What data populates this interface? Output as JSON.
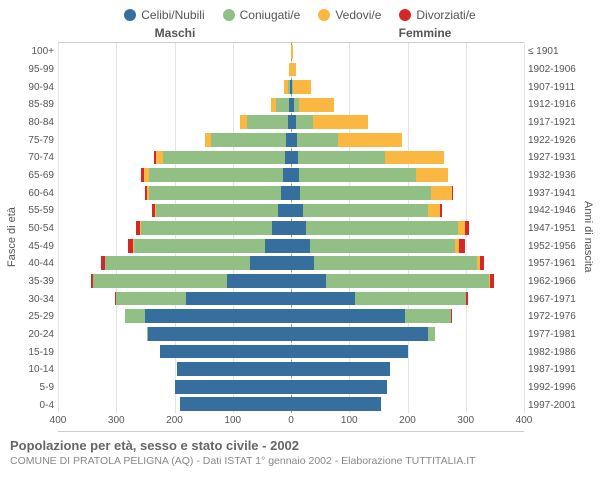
{
  "colors": {
    "celibi": "#366f9e",
    "coniugati": "#91bf84",
    "vedovi": "#fab742",
    "divorziati": "#d62728",
    "grid": "#e4e4e4",
    "center": "#999999",
    "text": "#555555",
    "bg": "#ffffff"
  },
  "legend": [
    {
      "key": "celibi",
      "label": "Celibi/Nubili"
    },
    {
      "key": "coniugati",
      "label": "Coniugati/e"
    },
    {
      "key": "vedovi",
      "label": "Vedovi/e"
    },
    {
      "key": "divorziati",
      "label": "Divorziati/e"
    }
  ],
  "gender_left": "Maschi",
  "gender_right": "Femmine",
  "ylabel_left": "Fasce di età",
  "ylabel_right": "Anni di nascita",
  "xlim": 400,
  "xticks": [
    0,
    100,
    200,
    300,
    400
  ],
  "age_labels": [
    "100+",
    "95-99",
    "90-94",
    "85-89",
    "80-84",
    "75-79",
    "70-74",
    "65-69",
    "60-64",
    "55-59",
    "50-54",
    "45-49",
    "40-44",
    "35-39",
    "30-34",
    "25-29",
    "20-24",
    "15-19",
    "10-14",
    "5-9",
    "0-4"
  ],
  "year_labels": [
    "≤ 1901",
    "1902-1906",
    "1907-1911",
    "1912-1916",
    "1917-1921",
    "1922-1926",
    "1927-1931",
    "1932-1936",
    "1937-1941",
    "1942-1946",
    "1947-1951",
    "1952-1956",
    "1957-1961",
    "1962-1966",
    "1967-1971",
    "1972-1976",
    "1977-1981",
    "1982-1986",
    "1987-1991",
    "1992-1996",
    "1997-2001"
  ],
  "rows": [
    {
      "m": {
        "cel": 0,
        "con": 0,
        "ved": 0,
        "div": 0
      },
      "f": {
        "cel": 0,
        "con": 0,
        "ved": 3,
        "div": 0
      }
    },
    {
      "m": {
        "cel": 0,
        "con": 0,
        "ved": 3,
        "div": 0
      },
      "f": {
        "cel": 0,
        "con": 0,
        "ved": 8,
        "div": 0
      }
    },
    {
      "m": {
        "cel": 2,
        "con": 4,
        "ved": 6,
        "div": 0
      },
      "f": {
        "cel": 2,
        "con": 2,
        "ved": 30,
        "div": 0
      }
    },
    {
      "m": {
        "cel": 4,
        "con": 22,
        "ved": 8,
        "div": 0
      },
      "f": {
        "cel": 6,
        "con": 8,
        "ved": 60,
        "div": 0
      }
    },
    {
      "m": {
        "cel": 6,
        "con": 70,
        "ved": 12,
        "div": 0
      },
      "f": {
        "cel": 8,
        "con": 30,
        "ved": 95,
        "div": 0
      }
    },
    {
      "m": {
        "cel": 8,
        "con": 130,
        "ved": 10,
        "div": 0
      },
      "f": {
        "cel": 10,
        "con": 70,
        "ved": 110,
        "div": 0
      }
    },
    {
      "m": {
        "cel": 10,
        "con": 210,
        "ved": 12,
        "div": 4
      },
      "f": {
        "cel": 12,
        "con": 150,
        "ved": 100,
        "div": 0
      }
    },
    {
      "m": {
        "cel": 14,
        "con": 230,
        "ved": 8,
        "div": 6
      },
      "f": {
        "cel": 14,
        "con": 200,
        "ved": 55,
        "div": 0
      }
    },
    {
      "m": {
        "cel": 18,
        "con": 225,
        "ved": 4,
        "div": 4
      },
      "f": {
        "cel": 16,
        "con": 225,
        "ved": 35,
        "div": 2
      }
    },
    {
      "m": {
        "cel": 22,
        "con": 210,
        "ved": 2,
        "div": 4
      },
      "f": {
        "cel": 20,
        "con": 215,
        "ved": 20,
        "div": 4
      }
    },
    {
      "m": {
        "cel": 32,
        "con": 225,
        "ved": 3,
        "div": 6
      },
      "f": {
        "cel": 26,
        "con": 260,
        "ved": 12,
        "div": 8
      }
    },
    {
      "m": {
        "cel": 45,
        "con": 225,
        "ved": 2,
        "div": 8
      },
      "f": {
        "cel": 32,
        "con": 250,
        "ved": 6,
        "div": 10
      }
    },
    {
      "m": {
        "cel": 70,
        "con": 250,
        "ved": 0,
        "div": 6
      },
      "f": {
        "cel": 40,
        "con": 280,
        "ved": 4,
        "div": 8
      }
    },
    {
      "m": {
        "cel": 110,
        "con": 230,
        "ved": 0,
        "div": 4
      },
      "f": {
        "cel": 60,
        "con": 280,
        "ved": 2,
        "div": 6
      }
    },
    {
      "m": {
        "cel": 180,
        "con": 120,
        "ved": 0,
        "div": 2
      },
      "f": {
        "cel": 110,
        "con": 190,
        "ved": 0,
        "div": 4
      }
    },
    {
      "m": {
        "cel": 250,
        "con": 35,
        "ved": 0,
        "div": 0
      },
      "f": {
        "cel": 195,
        "con": 80,
        "ved": 0,
        "div": 2
      }
    },
    {
      "m": {
        "cel": 245,
        "con": 3,
        "ved": 0,
        "div": 0
      },
      "f": {
        "cel": 235,
        "con": 12,
        "ved": 0,
        "div": 0
      }
    },
    {
      "m": {
        "cel": 225,
        "con": 0,
        "ved": 0,
        "div": 0
      },
      "f": {
        "cel": 200,
        "con": 0,
        "ved": 0,
        "div": 0
      }
    },
    {
      "m": {
        "cel": 195,
        "con": 0,
        "ved": 0,
        "div": 0
      },
      "f": {
        "cel": 170,
        "con": 0,
        "ved": 0,
        "div": 0
      }
    },
    {
      "m": {
        "cel": 200,
        "con": 0,
        "ved": 0,
        "div": 0
      },
      "f": {
        "cel": 165,
        "con": 0,
        "ved": 0,
        "div": 0
      }
    },
    {
      "m": {
        "cel": 190,
        "con": 0,
        "ved": 0,
        "div": 0
      },
      "f": {
        "cel": 155,
        "con": 0,
        "ved": 0,
        "div": 0
      }
    }
  ],
  "title": "Popolazione per età, sesso e stato civile - 2002",
  "subtitle": "COMUNE DI PRATOLA PELIGNA (AQ) - Dati ISTAT 1° gennaio 2002 - Elaborazione TUTTITALIA.IT"
}
